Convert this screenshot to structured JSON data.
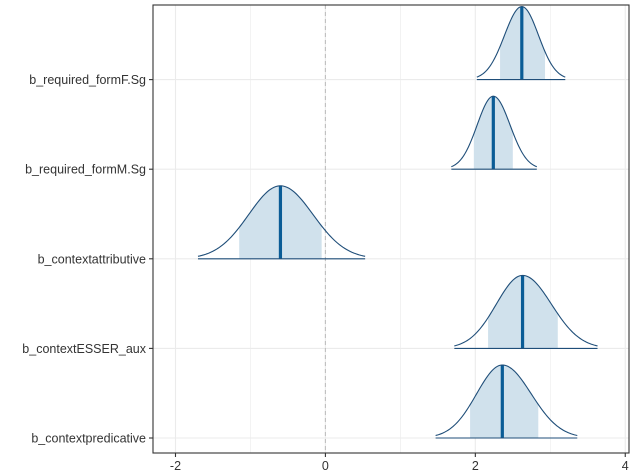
{
  "chart_data": {
    "type": "area",
    "title": "",
    "xlabel": "",
    "ylabel": "",
    "xlim": [
      -2.3,
      4.05
    ],
    "x_ticks": [
      -2,
      0,
      2,
      4
    ],
    "x_tick_labels": [
      "-2",
      "0",
      "2",
      "4"
    ],
    "reference_line_x": 0,
    "grid": true,
    "legend": "none",
    "colors": {
      "outline": "#1f4e79",
      "median": "#0a5c96",
      "interval_fill": "#d0e1ec",
      "grid": "#ebebeb",
      "zero_line": "#bfbfbf",
      "panel_border": "#333333"
    },
    "series": [
      {
        "name": "b_required_formF.Sg",
        "x_min": 2.02,
        "x_max": 3.2,
        "ci_low": 2.33,
        "ci_high": 2.93,
        "median": 2.62,
        "mode": 2.62
      },
      {
        "name": "b_required_formM.Sg",
        "x_min": 1.68,
        "x_max": 2.82,
        "ci_low": 1.98,
        "ci_high": 2.5,
        "median": 2.24,
        "mode": 2.24
      },
      {
        "name": "b_contextattributive",
        "x_min": -1.7,
        "x_max": 0.53,
        "ci_low": -1.15,
        "ci_high": -0.05,
        "median": -0.6,
        "mode": -0.6
      },
      {
        "name": "b_contextESSER_aux",
        "x_min": 1.72,
        "x_max": 3.63,
        "ci_low": 2.17,
        "ci_high": 3.1,
        "median": 2.63,
        "mode": 2.63
      },
      {
        "name": "b_contextpredicative",
        "x_min": 1.47,
        "x_max": 3.36,
        "ci_low": 1.93,
        "ci_high": 2.84,
        "median": 2.36,
        "mode": 2.36
      }
    ]
  }
}
